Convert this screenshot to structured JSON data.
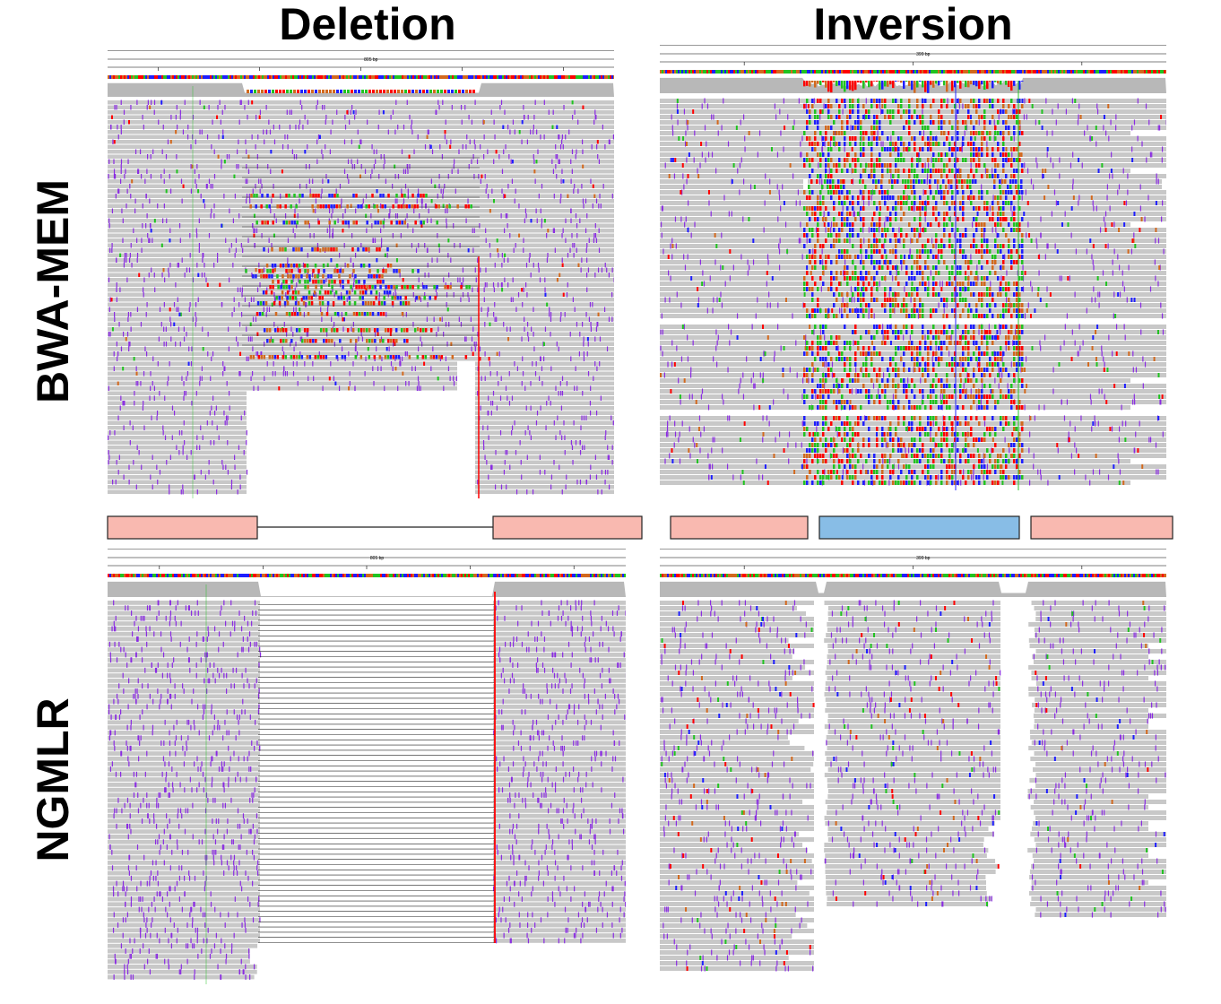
{
  "columns": {
    "deletion": "Deletion",
    "inversion": "Inversion"
  },
  "rows": {
    "top": "BWA-MEM",
    "bottom": "NGMLR"
  },
  "panels": {
    "deletion_bwa": {
      "span_label": "805 bp"
    },
    "inversion_bwa": {
      "span_label": "399 bp"
    },
    "deletion_ngmlr": {
      "span_label": "805 bp"
    },
    "inversion_ngmlr": {
      "span_label": "399 bp"
    }
  },
  "colors": {
    "read": "#c8c8c8",
    "insertion": "#8a2be2",
    "A": "#21c321",
    "C": "#1e1eff",
    "G": "#d2691e",
    "T": "#ff0000",
    "flank_block": "#f9b9b0",
    "inverted_block": "#88bde6"
  }
}
